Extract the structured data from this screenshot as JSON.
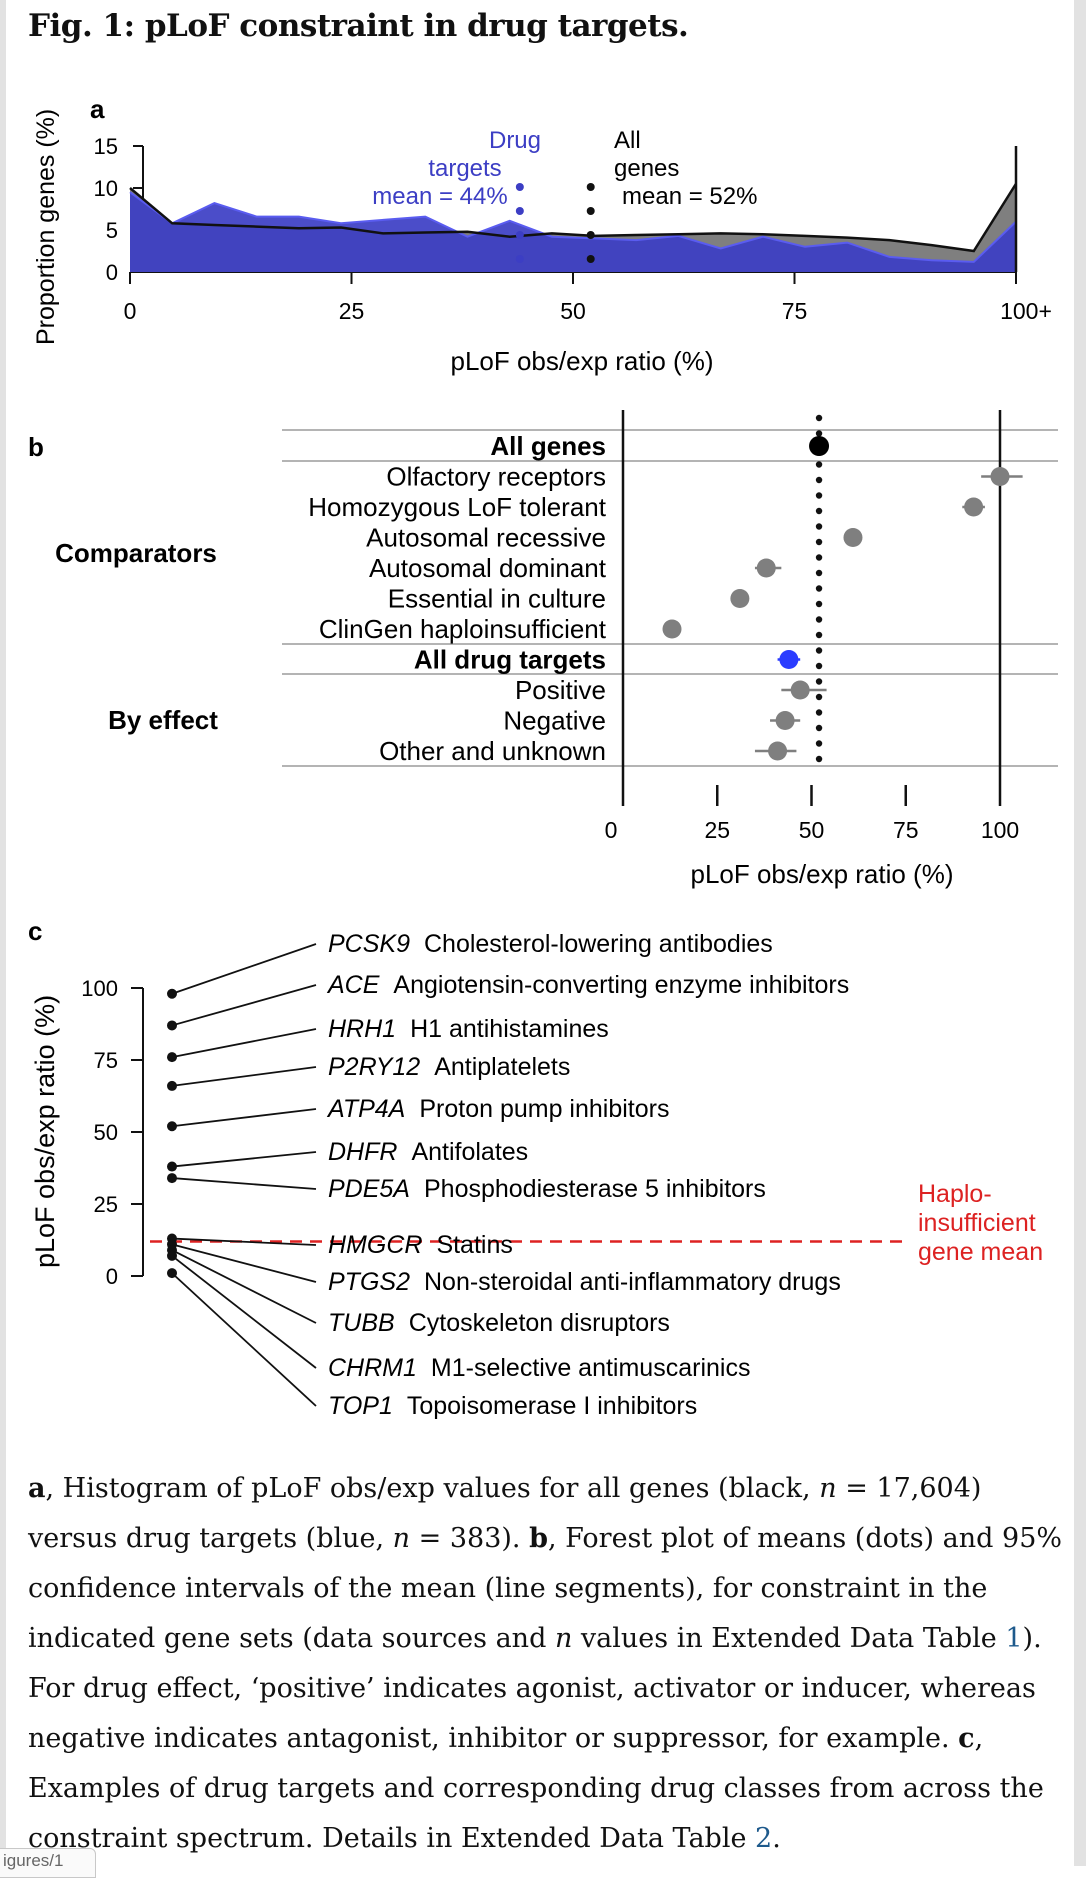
{
  "figure": {
    "title": "Fig. 1: pLoF constraint in drug targets."
  },
  "panel_a": {
    "letter": "a",
    "ylabel": "Proportion genes (%)",
    "xlabel": "pLoF obs/exp ratio (%)",
    "xticks": [
      "0",
      "25",
      "50",
      "75",
      "100+"
    ],
    "yticks": [
      "0",
      "5",
      "10",
      "15"
    ],
    "drug_label": [
      "Drug",
      "targets",
      "mean = 44%"
    ],
    "all_label": [
      "All",
      "genes",
      "mean = 52%"
    ],
    "colors": {
      "drug": "#3c3ec4",
      "drug_line": "#5a5cf0",
      "all": "#7f7f7f"
    }
  },
  "panel_b": {
    "letter": "b",
    "xlabel": "pLoF obs/exp ratio (%)",
    "xticks": [
      "0",
      "25",
      "50",
      "75",
      "100"
    ],
    "group_comparators": "Comparators",
    "group_effect": "By effect",
    "rows": [
      {
        "label": "All genes",
        "bold": true,
        "mean": 52,
        "lo": 51.5,
        "hi": 52.5,
        "color": "#000000"
      },
      {
        "label": "Olfactory receptors",
        "bold": false,
        "mean": 100,
        "lo": 95,
        "hi": 106,
        "color": "#7f7f7f"
      },
      {
        "label": "Homozygous LoF tolerant",
        "bold": false,
        "mean": 93,
        "lo": 90,
        "hi": 96,
        "color": "#7f7f7f"
      },
      {
        "label": "Autosomal recessive",
        "bold": false,
        "mean": 61,
        "lo": 59,
        "hi": 63,
        "color": "#7f7f7f"
      },
      {
        "label": "Autosomal dominant",
        "bold": false,
        "mean": 38,
        "lo": 35,
        "hi": 42,
        "color": "#7f7f7f"
      },
      {
        "label": "Essential in culture",
        "bold": false,
        "mean": 31,
        "lo": 29,
        "hi": 33,
        "color": "#7f7f7f"
      },
      {
        "label": "ClinGen haploinsufficient",
        "bold": false,
        "mean": 13,
        "lo": 11,
        "hi": 15,
        "color": "#7f7f7f"
      },
      {
        "label": "All drug targets",
        "bold": true,
        "mean": 44,
        "lo": 41,
        "hi": 47,
        "color": "#2a3cff"
      },
      {
        "label": "Positive",
        "bold": false,
        "mean": 47,
        "lo": 42,
        "hi": 54,
        "color": "#7f7f7f"
      },
      {
        "label": "Negative",
        "bold": false,
        "mean": 43,
        "lo": 39,
        "hi": 47,
        "color": "#7f7f7f"
      },
      {
        "label": "Other and unknown",
        "bold": false,
        "mean": 41,
        "lo": 35,
        "hi": 46,
        "color": "#7f7f7f"
      }
    ]
  },
  "panel_c": {
    "letter": "c",
    "ylabel": "pLoF obs/exp ratio (%)",
    "yticks": [
      "0",
      "25",
      "50",
      "75",
      "100"
    ],
    "haplo_label": [
      "Haplo-",
      "insufficient",
      "gene mean"
    ],
    "haplo_value": 13,
    "haplo_color": "#dd2222",
    "genes": [
      {
        "gene": "PCSK9",
        "drug": "Cholesterol-lowering antibodies",
        "value": 98
      },
      {
        "gene": "ACE",
        "drug": "Angiotensin-converting enzyme inhibitors",
        "value": 87
      },
      {
        "gene": "HRH1",
        "drug": "H1 antihistamines",
        "value": 76
      },
      {
        "gene": "P2RY12",
        "drug": "Antiplatelets",
        "value": 66
      },
      {
        "gene": "ATP4A",
        "drug": "Proton pump inhibitors",
        "value": 52
      },
      {
        "gene": "DHFR",
        "drug": "Antifolates",
        "value": 38
      },
      {
        "gene": "PDE5A",
        "drug": "Phosphodiesterase 5 inhibitors",
        "value": 34
      },
      {
        "gene": "HMGCR",
        "drug": "Statins",
        "value": 13
      },
      {
        "gene": "PTGS2",
        "drug": "Non-steroidal anti-inflammatory drugs",
        "value": 11
      },
      {
        "gene": "TUBB",
        "drug": "Cytoskeleton disruptors",
        "value": 9
      },
      {
        "gene": "CHRM1",
        "drug": "M1-selective antimuscarinics",
        "value": 7
      },
      {
        "gene": "TOP1",
        "drug": "Topoisomerase I inhibitors",
        "value": 1
      }
    ]
  },
  "caption": {
    "a_letter": "a",
    "a_text_1": ", Histogram of pLoF obs/exp values for all genes (black, ",
    "n_sym": "n",
    "a_text_2": " = 17,604) versus drug targets (blue, ",
    "a_text_3": " = 383). ",
    "b_letter": "b",
    "b_text_1": ", Forest plot of means (dots) and 95% confidence intervals of the mean (line segments), for constraint in the indicated gene sets (data sources and ",
    "b_text_2": " values in Extended Data Table ",
    "table1_ref": "1",
    "b_text_3": "). For drug effect, ‘positive’ indicates agonist, activator or inducer, whereas negative indicates antagonist, inhibitor or suppressor, for example. ",
    "c_letter": "c",
    "c_text_1": ", Examples of drug targets and corresponding drug classes from across the constraint spectrum. Details in Extended Data Table ",
    "table2_ref": "2",
    "c_text_2": "."
  },
  "tab_stub": "igures/1"
}
